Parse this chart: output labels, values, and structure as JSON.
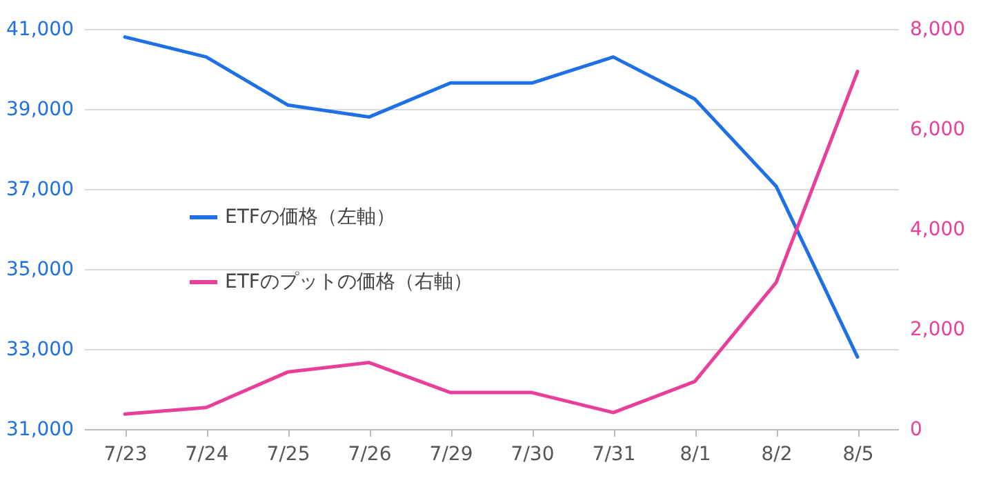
{
  "chart_data": {
    "type": "line",
    "categories": [
      "7/23",
      "7/24",
      "7/25",
      "7/26",
      "7/29",
      "7/30",
      "7/31",
      "8/1",
      "8/2",
      "8/5"
    ],
    "series": [
      {
        "name": "ETFの価格（左軸）",
        "color": "#1f6fe5",
        "axis": "y",
        "values": [
          40800,
          40300,
          39100,
          38800,
          39650,
          39650,
          40300,
          39250,
          37070,
          32800
        ]
      },
      {
        "name": "ETFのプットの価格（右軸）",
        "color": "#e8409a",
        "axis": "y2",
        "values": [
          300,
          430,
          1140,
          1330,
          730,
          730,
          330,
          950,
          2930,
          7150
        ]
      }
    ],
    "ylim": [
      31000,
      41000
    ],
    "yticks": [
      {
        "value": 31000,
        "label": "31,000"
      },
      {
        "value": 33000,
        "label": "33,000"
      },
      {
        "value": 35000,
        "label": "35,000"
      },
      {
        "value": 37000,
        "label": "37,000"
      },
      {
        "value": 39000,
        "label": "39,000"
      },
      {
        "value": 41000,
        "label": "41,000"
      }
    ],
    "y2lim": [
      0,
      8000
    ],
    "y2ticks": [
      0,
      {
        "value": 2000,
        "label": "2,000"
      },
      {
        "value": 4000,
        "label": "4,000"
      },
      {
        "value": 6000,
        "label": "6,000"
      },
      {
        "value": 8000,
        "label": "8,000"
      }
    ],
    "grid": "y",
    "legend": "left",
    "marker": "none",
    "line_style": "solid"
  }
}
